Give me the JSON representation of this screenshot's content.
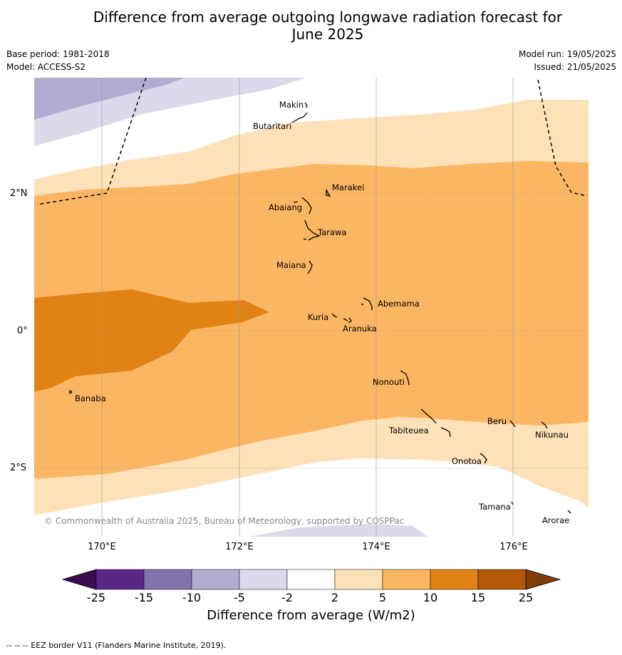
{
  "title_line1": "Difference from average outgoing longwave radiation forecast for",
  "title_line2": "June 2025",
  "meta_left": {
    "base_period": "Base period: 1981-2018",
    "model": "Model: ACCESS-S2"
  },
  "meta_right": {
    "model_run": "Model run: 19/05/2025",
    "issued": "Issued: 21/05/2025"
  },
  "lat_ticks": [
    "2°N",
    "0°",
    "2°S"
  ],
  "lon_ticks": [
    "170°E",
    "172°E",
    "174°E",
    "176°E"
  ],
  "islands": {
    "makin": "Makin",
    "butaritari": "Butaritari",
    "marakei": "Marakei",
    "abaiang": "Abaiang",
    "tarawa": "Tarawa",
    "maiana": "Maiana",
    "abemama": "Abemama",
    "kuria": "Kuria",
    "aranuka": "Aranuka",
    "nonouti": "Nonouti",
    "banaba": "Banaba",
    "beru": "Beru",
    "tabiteuea": "Tabiteuea",
    "nikunau": "Nikunau",
    "onotoa": "Onotoa",
    "tamana": "Tamana",
    "arorae": "Arorae"
  },
  "copyright": "© Commonwealth of Australia 2025, Bureau of Meteorology, supported by COSPPac",
  "colorbar": {
    "ticks": [
      "-25",
      "-15",
      "-10",
      "-5",
      "-2",
      "2",
      "5",
      "10",
      "15",
      "25"
    ],
    "colors": [
      "#3a0b4e",
      "#5b2588",
      "#8174ad",
      "#b3acd2",
      "#dadaea",
      "#ffffff",
      "#fde1b8",
      "#fbb663",
      "#e08214",
      "#b35806",
      "#7f3b08"
    ],
    "label": "Difference from average (W/m2)"
  },
  "legend": "--  --  -- EEZ border V11 (Flanders Marine Institute, 2019)."
}
